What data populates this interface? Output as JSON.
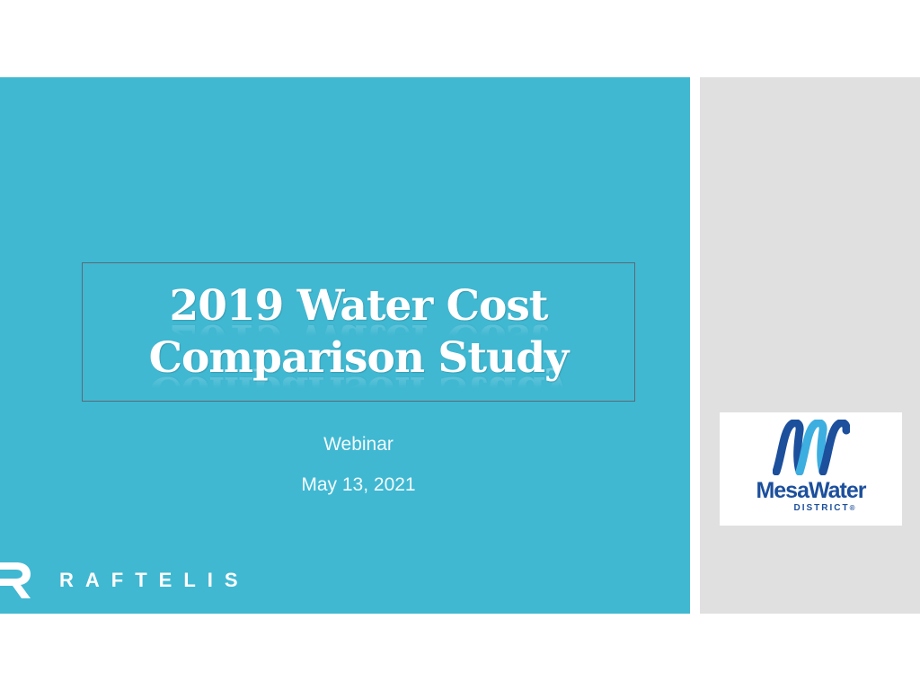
{
  "slide": {
    "title_line1": "2019 Water Cost",
    "title_line2": "Comparison Study",
    "subtitle": "Webinar",
    "date": "May 13, 2021"
  },
  "branding": {
    "raftelis_logo_icon": "raftelis-r-icon",
    "raftelis_wordmark": "RAFTELIS",
    "partner_logo_icon": "mesa-water-waves-icon",
    "partner_name": "MesaWater",
    "partner_sub": "DISTRICT",
    "partner_reg_mark": "®"
  },
  "colors": {
    "accent_band": "#40B8D2",
    "side_panel": "#E0E0E0",
    "logo_blue": "#1C4F9C",
    "logo_light_blue": "#3CAEE0"
  }
}
